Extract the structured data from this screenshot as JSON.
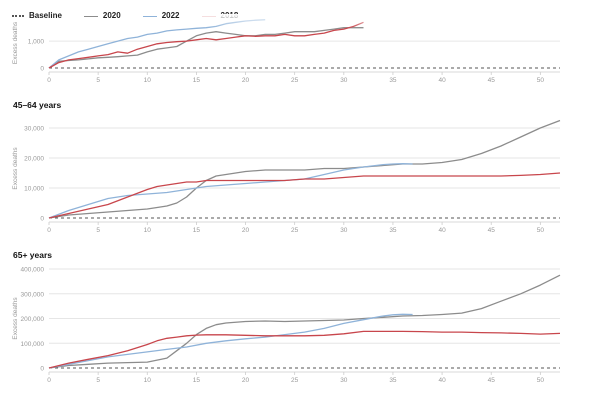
{
  "legend": [
    {
      "label": "Baseline",
      "color": "#555555",
      "style": "dotted"
    },
    {
      "label": "2020",
      "color": "#8c8c8c",
      "style": "solid"
    },
    {
      "label": "2022",
      "color": "#8fb3d9",
      "style": "solid"
    },
    {
      "label": "2018",
      "color": "#c8464c",
      "style": "solid"
    }
  ],
  "chart_data": [
    {
      "type": "line",
      "title": "",
      "ylabel": "Excess deaths",
      "xlim": [
        0,
        52
      ],
      "ylim": [
        0,
        3500
      ],
      "y_ticks": [
        0,
        1000
      ],
      "y_tick_labels": [
        "0",
        "1,000"
      ],
      "x_ticks": [
        0,
        5,
        10,
        15,
        20,
        25,
        30,
        35,
        40,
        45,
        50
      ],
      "x_tick_labels": [
        "0",
        "5",
        "10",
        "15",
        "20",
        "25",
        "30",
        "35",
        "40",
        "45",
        "50"
      ],
      "series": [
        {
          "name": "Baseline",
          "style": "dashed",
          "color": "#555555",
          "x": [
            0,
            52
          ],
          "y": [
            0,
            0
          ]
        },
        {
          "name": "2020",
          "color": "#8c8c8c",
          "x": [
            0,
            1,
            2,
            3,
            4,
            5,
            6,
            7,
            8,
            9,
            10,
            11,
            12,
            13,
            14,
            15,
            16,
            17,
            18,
            19,
            20,
            21,
            22,
            23,
            24,
            25,
            26,
            27,
            28,
            29,
            30,
            31,
            32
          ],
          "y": [
            0,
            250,
            280,
            300,
            340,
            380,
            400,
            420,
            450,
            480,
            600,
            700,
            750,
            800,
            1000,
            1200,
            1300,
            1350,
            1300,
            1250,
            1200,
            1200,
            1250,
            1250,
            1300,
            1350,
            1350,
            1350,
            1400,
            1450,
            1500,
            1500,
            1500
          ]
        },
        {
          "name": "2022",
          "color": "#8fb3d9",
          "x": [
            0,
            1,
            2,
            3,
            4,
            5,
            6,
            7,
            8,
            9,
            10,
            11,
            12,
            13,
            14,
            15,
            16,
            17,
            18,
            19,
            20,
            21,
            22
          ],
          "y": [
            0,
            300,
            450,
            600,
            700,
            800,
            900,
            1000,
            1100,
            1150,
            1250,
            1300,
            1380,
            1420,
            1450,
            1480,
            1500,
            1550,
            1650,
            1700,
            1750,
            1780,
            1800
          ]
        },
        {
          "name": "2018",
          "color": "#c8464c",
          "x": [
            0,
            1,
            2,
            3,
            4,
            5,
            6,
            7,
            8,
            9,
            10,
            11,
            12,
            13,
            14,
            15,
            16,
            17,
            18,
            19,
            20,
            21,
            22,
            23,
            24,
            25,
            26,
            27,
            28,
            29,
            30,
            31,
            32
          ],
          "y": [
            0,
            200,
            300,
            350,
            400,
            450,
            500,
            600,
            550,
            700,
            800,
            900,
            950,
            980,
            1000,
            1050,
            1100,
            1050,
            1100,
            1150,
            1200,
            1180,
            1200,
            1200,
            1250,
            1200,
            1200,
            1250,
            1300,
            1400,
            1450,
            1550,
            1700
          ]
        }
      ]
    },
    {
      "type": "line",
      "title": "45–64 years",
      "ylabel": "Excess deaths",
      "xlim": [
        0,
        52
      ],
      "ylim": [
        0,
        33000
      ],
      "y_ticks": [
        0,
        10000,
        20000,
        30000
      ],
      "y_tick_labels": [
        "0",
        "10,000",
        "20,000",
        "30,000"
      ],
      "x_ticks": [
        0,
        5,
        10,
        15,
        20,
        25,
        30,
        35,
        40,
        45,
        50
      ],
      "x_tick_labels": [
        "0",
        "5",
        "10",
        "15",
        "20",
        "25",
        "30",
        "35",
        "40",
        "45",
        "50"
      ],
      "series": [
        {
          "name": "Baseline",
          "style": "dashed",
          "color": "#555555",
          "x": [
            0,
            52
          ],
          "y": [
            0,
            0
          ]
        },
        {
          "name": "2020",
          "color": "#8c8c8c",
          "x": [
            0,
            2,
            4,
            6,
            8,
            10,
            11,
            12,
            13,
            14,
            15,
            16,
            17,
            18,
            19,
            20,
            22,
            24,
            26,
            28,
            30,
            32,
            34,
            36,
            38,
            40,
            42,
            44,
            46,
            48,
            50,
            52
          ],
          "y": [
            0,
            1000,
            1500,
            2000,
            2500,
            3000,
            3500,
            4000,
            5000,
            7000,
            10000,
            12500,
            14000,
            14500,
            15000,
            15500,
            16000,
            16000,
            16000,
            16500,
            16500,
            17000,
            17500,
            18000,
            18000,
            18500,
            19500,
            21500,
            24000,
            27000,
            30000,
            32500
          ]
        },
        {
          "name": "2022",
          "color": "#8fb3d9",
          "x": [
            0,
            2,
            4,
            6,
            8,
            10,
            12,
            14,
            16,
            18,
            20,
            22,
            24,
            26,
            28,
            30,
            32,
            34,
            35,
            36,
            37
          ],
          "y": [
            0,
            2500,
            4500,
            6500,
            7500,
            8000,
            8500,
            9500,
            10500,
            11000,
            11500,
            12000,
            12500,
            13000,
            14500,
            16000,
            17000,
            17800,
            18000,
            18100,
            18000
          ]
        },
        {
          "name": "2018",
          "color": "#c8464c",
          "x": [
            0,
            2,
            4,
            6,
            8,
            10,
            11,
            12,
            13,
            14,
            15,
            16,
            18,
            20,
            22,
            24,
            26,
            28,
            30,
            32,
            34,
            36,
            38,
            40,
            42,
            44,
            46,
            48,
            50,
            52
          ],
          "y": [
            0,
            1500,
            3000,
            4500,
            7000,
            9500,
            10500,
            11000,
            11500,
            12000,
            12000,
            12500,
            12500,
            12500,
            12500,
            12500,
            13000,
            13000,
            13500,
            14000,
            14000,
            14000,
            14000,
            14000,
            14000,
            14000,
            14000,
            14200,
            14500,
            15000
          ]
        }
      ]
    },
    {
      "type": "line",
      "title": "65+ years",
      "ylabel": "Excess deaths",
      "xlim": [
        0,
        52
      ],
      "ylim": [
        0,
        400000
      ],
      "y_ticks": [
        0,
        100000,
        200000,
        300000,
        400000
      ],
      "y_tick_labels": [
        "0",
        "100,000",
        "200,000",
        "300,000",
        "400,000"
      ],
      "x_ticks": [
        0,
        5,
        10,
        15,
        20,
        25,
        30,
        35,
        40,
        45,
        50
      ],
      "x_tick_labels": [
        "0",
        "5",
        "10",
        "15",
        "20",
        "25",
        "30",
        "35",
        "40",
        "45",
        "50"
      ],
      "series": [
        {
          "name": "Baseline",
          "style": "dashed",
          "color": "#555555",
          "x": [
            0,
            52
          ],
          "y": [
            0,
            0
          ]
        },
        {
          "name": "2020",
          "color": "#8c8c8c",
          "x": [
            0,
            2,
            4,
            6,
            8,
            10,
            12,
            13,
            14,
            15,
            16,
            17,
            18,
            20,
            22,
            24,
            26,
            28,
            30,
            32,
            34,
            36,
            38,
            40,
            42,
            44,
            46,
            48,
            50,
            52
          ],
          "y": [
            0,
            10000,
            15000,
            20000,
            22000,
            24000,
            40000,
            70000,
            100000,
            135000,
            160000,
            175000,
            182000,
            188000,
            190000,
            188000,
            190000,
            192000,
            194000,
            200000,
            205000,
            210000,
            212000,
            216000,
            222000,
            240000,
            270000,
            300000,
            335000,
            375000
          ]
        },
        {
          "name": "2022",
          "color": "#8fb3d9",
          "x": [
            0,
            2,
            4,
            6,
            8,
            10,
            12,
            14,
            16,
            18,
            20,
            22,
            24,
            26,
            28,
            30,
            32,
            34,
            35,
            36,
            37
          ],
          "y": [
            0,
            15000,
            30000,
            45000,
            55000,
            65000,
            75000,
            85000,
            100000,
            110000,
            118000,
            125000,
            135000,
            145000,
            160000,
            180000,
            195000,
            210000,
            215000,
            217000,
            216000
          ]
        },
        {
          "name": "2018",
          "color": "#c8464c",
          "x": [
            0,
            2,
            4,
            6,
            8,
            10,
            11,
            12,
            13,
            14,
            15,
            16,
            18,
            20,
            22,
            24,
            26,
            28,
            30,
            32,
            34,
            36,
            38,
            40,
            42,
            44,
            46,
            48,
            50,
            52
          ],
          "y": [
            0,
            20000,
            35000,
            50000,
            70000,
            95000,
            110000,
            120000,
            125000,
            130000,
            133000,
            134000,
            134000,
            132000,
            130000,
            130000,
            130000,
            132000,
            138000,
            148000,
            148000,
            148000,
            147000,
            145000,
            145000,
            143000,
            142000,
            140000,
            137000,
            140000
          ]
        }
      ]
    }
  ]
}
